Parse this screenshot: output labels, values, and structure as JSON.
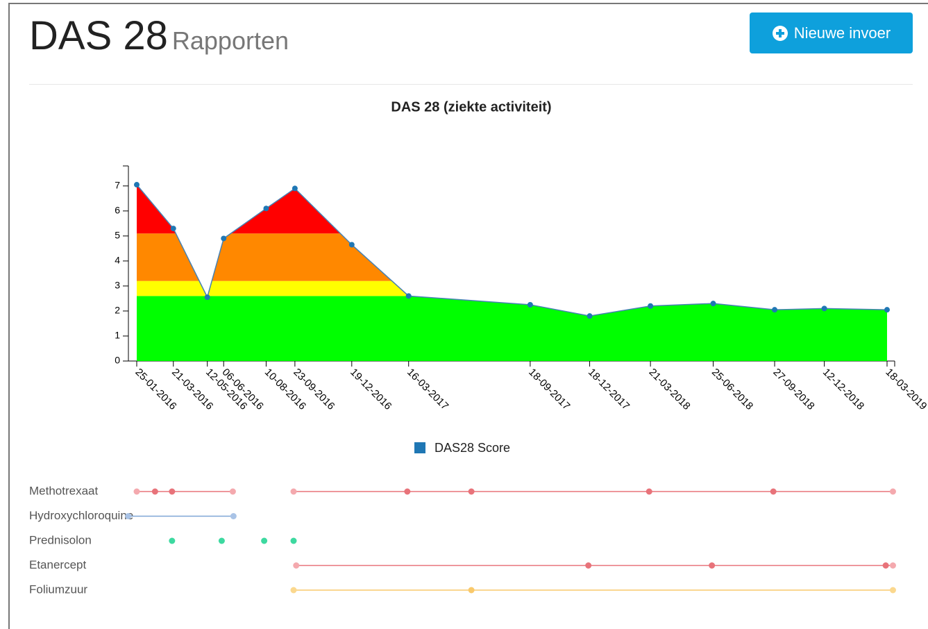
{
  "header": {
    "title": "DAS 28",
    "subtitle": "Rapporten",
    "button": "Nieuwe invoer"
  },
  "chart_data": {
    "type": "area",
    "title": "DAS 28 (ziekte activiteit)",
    "x": [
      "25-01-2016",
      "21-03-2016",
      "12-05-2016",
      "06-06-2016",
      "10-08-2016",
      "23-09-2016",
      "19-12-2016",
      "16-03-2017",
      "18-09-2017",
      "18-12-2017",
      "21-03-2018",
      "25-06-2018",
      "27-09-2018",
      "12-12-2018",
      "18-03-2019"
    ],
    "series": [
      {
        "name": "DAS28 Score",
        "color": "#1f77b4",
        "values": [
          7.05,
          5.3,
          2.55,
          4.9,
          6.1,
          6.9,
          4.65,
          2.6,
          2.25,
          1.8,
          2.2,
          2.3,
          2.05,
          2.1,
          2.05
        ]
      }
    ],
    "xlim": [
      "25-01-2016",
      "18-03-2019"
    ],
    "ylim": [
      0,
      7.8
    ],
    "yticks": [
      0,
      1,
      2,
      3,
      4,
      5,
      6,
      7
    ],
    "bands": [
      {
        "from": 0,
        "to": 2.6,
        "color": "#00ff00"
      },
      {
        "from": 2.6,
        "to": 3.2,
        "color": "#ffff00"
      },
      {
        "from": 3.2,
        "to": 5.1,
        "color": "#ff8800"
      },
      {
        "from": 5.1,
        "to": 7.8,
        "color": "#ff0000"
      }
    ],
    "legend": "bottom"
  },
  "medications": [
    {
      "name": "Methotrexaat",
      "color": "#e8737a",
      "light": "#f4a9ae",
      "line": true,
      "segments": [
        [
          "25-01-2016",
          "22-02-2016",
          "19-03-2016",
          "20-06-2016"
        ],
        [
          "21-09-2016",
          "14-03-2017",
          "20-06-2017",
          "19-03-2018",
          "25-09-2018",
          "27-03-2019"
        ]
      ]
    },
    {
      "name": "Hydroxychloroquine",
      "color": "#7fa6d6",
      "light": "#a9c3e6",
      "line": true,
      "segments": [
        [
          "12-01-2016",
          "21-06-2016"
        ]
      ]
    },
    {
      "name": "Prednisolon",
      "color": "#3dd9a0",
      "light": "#3dd9a0",
      "line": false,
      "segments": [
        [
          "19-03-2016",
          "03-06-2016",
          "07-08-2016",
          "21-09-2016"
        ]
      ]
    },
    {
      "name": "Etanercept",
      "color": "#e8737a",
      "light": "#f4a9ae",
      "line": true,
      "segments": [
        [
          "25-09-2016",
          "16-12-2017",
          "23-06-2018",
          "16-03-2019",
          "27-03-2019"
        ]
      ]
    },
    {
      "name": "Foliumzuur",
      "color": "#f9c96b",
      "light": "#fbd88e",
      "line": true,
      "segments": [
        [
          "21-09-2016",
          "20-06-2017",
          "27-03-2019"
        ]
      ]
    }
  ]
}
